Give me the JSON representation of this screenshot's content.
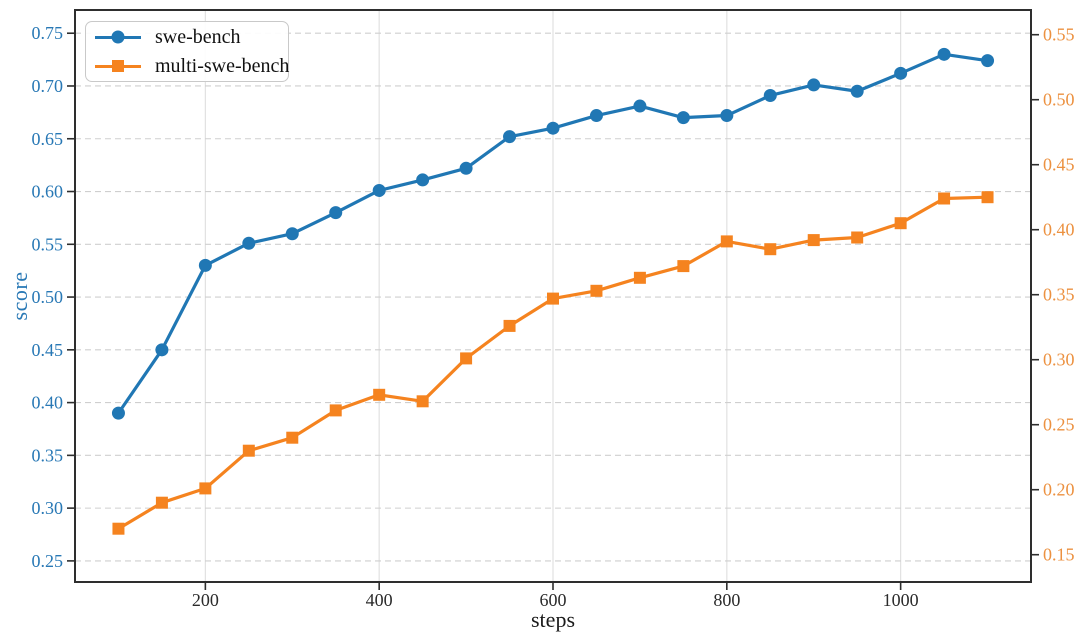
{
  "chart_data": {
    "type": "line",
    "title": "",
    "xlabel": "steps",
    "ylabel_left": "score",
    "xlim": [
      50,
      1150
    ],
    "ylim_left": [
      0.23,
      0.772
    ],
    "ylim_right": [
      0.129,
      0.569
    ],
    "xticks": [
      200,
      400,
      600,
      800,
      1000
    ],
    "yticks_left": [
      0.25,
      0.3,
      0.35,
      0.4,
      0.45,
      0.5,
      0.55,
      0.6,
      0.65,
      0.7,
      0.75
    ],
    "yticks_right": [
      0.15,
      0.2,
      0.25,
      0.3,
      0.35,
      0.4,
      0.45,
      0.5,
      0.55
    ],
    "grid": true,
    "legend_position": "upper-left",
    "x": [
      100,
      150,
      200,
      250,
      300,
      350,
      400,
      450,
      500,
      550,
      600,
      650,
      700,
      750,
      800,
      850,
      900,
      950,
      1000,
      1050,
      1100
    ],
    "series": [
      {
        "name": "swe-bench",
        "axis": "left",
        "color": "#2077b4",
        "marker": "circle",
        "values": [
          0.39,
          0.45,
          0.53,
          0.551,
          0.56,
          0.58,
          0.601,
          0.611,
          0.622,
          0.652,
          0.66,
          0.672,
          0.681,
          0.67,
          0.672,
          0.691,
          0.701,
          0.695,
          0.712,
          0.73,
          0.724
        ]
      },
      {
        "name": "multi-swe-bench",
        "axis": "right",
        "color": "#f5831f",
        "marker": "square",
        "values": [
          0.17,
          0.19,
          0.201,
          0.23,
          0.24,
          0.261,
          0.273,
          0.268,
          0.301,
          0.326,
          0.347,
          0.353,
          0.363,
          0.372,
          0.391,
          0.385,
          0.392,
          0.394,
          0.405,
          0.424,
          0.425
        ]
      }
    ],
    "colors": {
      "left_tick": "#2878b5",
      "right_tick": "#ec9140",
      "xtick": "#2b2b2b",
      "hgrid": "#cfcfcf",
      "vgrid": "#e1e1e1",
      "spine": "#2e2e2e"
    }
  }
}
